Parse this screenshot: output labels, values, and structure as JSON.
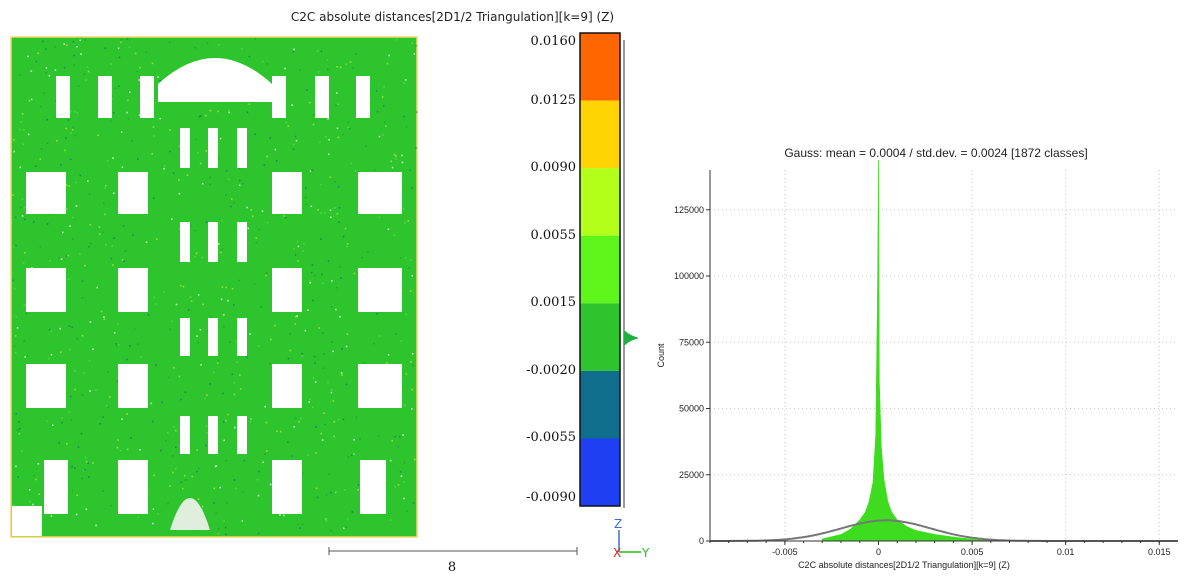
{
  "viewer": {
    "title": "C2C absolute distances[2D1/2 Triangulation][k=9] (Z)",
    "colors": {
      "facade_green": "#2ec42e",
      "frame_yellow": "#f5d66a",
      "window_white": "#ffffff"
    },
    "scale_bar_label": "8",
    "axis_labels": {
      "z": "Z",
      "x": "X",
      "y": "Y"
    },
    "axis_colors": {
      "z": "#3a6fd8",
      "x": "#e02020",
      "y": "#20c020"
    }
  },
  "color_scale": {
    "labels": [
      "0.0160",
      "0.0125",
      "0.0090",
      "0.0055",
      "0.0015",
      "-0.0020",
      "-0.0055",
      "-0.0090"
    ],
    "colors": [
      "#ff6600",
      "#ffd400",
      "#b4ff1a",
      "#5ef51a",
      "#2ec42e",
      "#0f6e8c",
      "#1f3ff2"
    ],
    "pointer_color": "#20b040"
  },
  "chart_data": {
    "type": "bar",
    "title": "Gauss: mean = 0.0004 / std.dev. = 0.0024 [1872 classes]",
    "xlabel": "C2C absolute distances[2D1/2 Triangulation][k=9] (Z)",
    "ylabel": "Count",
    "xlim": [
      -0.009,
      0.016
    ],
    "ylim": [
      0,
      140000
    ],
    "x_ticks": [
      -0.005,
      0,
      0.005,
      0.01,
      0.015
    ],
    "x_tick_labels": [
      "-0.005",
      "0",
      "0.005",
      "0.01",
      "0.015"
    ],
    "y_ticks": [
      0,
      25000,
      50000,
      75000,
      100000,
      125000
    ],
    "y_tick_labels": [
      "0",
      "25000",
      "50000",
      "75000",
      "100000",
      "125000"
    ],
    "grid": true,
    "series": [
      {
        "type": "histogram",
        "color": "#3ddc1e",
        "x": [
          -0.003,
          -0.002,
          -0.0015,
          -0.001,
          -0.0007,
          -0.0005,
          -0.0003,
          -0.00015,
          -5e-05,
          0,
          5e-05,
          0.00015,
          0.0003,
          0.0005,
          0.0007,
          0.001,
          0.0015,
          0.002,
          0.003,
          0.004,
          0.005,
          0.006
        ],
        "values": [
          800,
          2500,
          4500,
          8000,
          11000,
          15000,
          22000,
          40000,
          96000,
          148000,
          60000,
          36000,
          23000,
          15000,
          11000,
          8000,
          5500,
          4000,
          2500,
          1500,
          700,
          300
        ]
      },
      {
        "type": "line",
        "color": "#777777",
        "mean": 0.0004,
        "std": 0.0024,
        "peak": 7800
      }
    ]
  }
}
